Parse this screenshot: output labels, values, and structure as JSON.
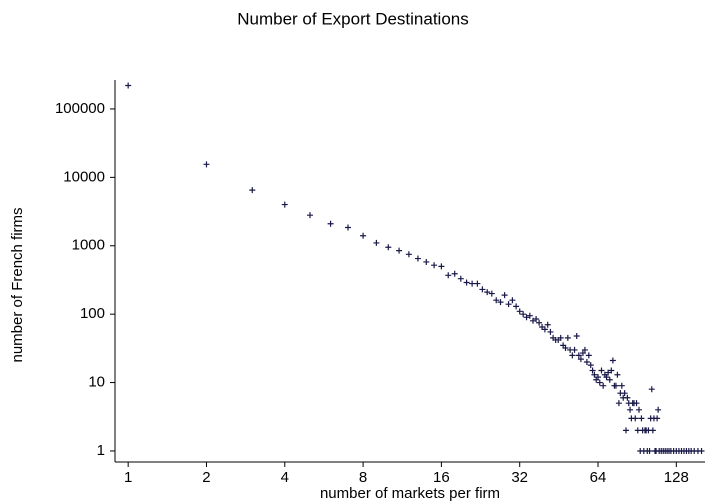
{
  "chart_data": {
    "type": "scatter",
    "title": "Number of Export Destinations",
    "x_label": "number of markets per firm",
    "y_label": "number of French firms",
    "x_scale": "log",
    "y_scale": "log",
    "grid": false,
    "color": "#1a1a4a",
    "xlim": [
      0.89,
      165
    ],
    "ylim": [
      0.69,
      265000
    ],
    "xticks": [
      1,
      2,
      4,
      8,
      16,
      32,
      64,
      128
    ],
    "yticks": [
      1,
      10,
      100,
      1000,
      10000,
      100000
    ],
    "x": [
      1,
      2,
      3,
      4,
      5,
      6,
      7,
      8,
      9,
      10,
      11,
      12,
      13,
      14,
      15,
      16,
      17,
      18,
      19,
      20,
      21,
      22,
      23,
      24,
      25,
      26,
      27,
      28,
      29,
      30,
      31,
      32,
      33,
      34,
      35,
      36,
      37,
      38,
      39,
      40,
      41,
      42,
      43,
      44,
      45,
      46,
      47,
      48,
      49,
      50,
      51,
      52,
      53,
      54,
      55,
      56,
      57,
      58,
      59,
      60,
      61,
      62,
      63,
      64,
      65,
      66,
      67,
      68,
      69,
      70,
      71,
      72,
      73,
      74,
      75,
      76,
      77,
      78,
      79,
      80,
      81,
      82,
      83,
      84,
      85,
      86,
      87,
      88,
      89,
      90,
      91,
      92,
      93,
      94,
      95,
      96,
      97,
      98,
      99,
      100,
      101,
      102,
      103,
      104,
      105,
      106,
      107,
      108,
      109,
      110,
      112,
      114,
      116,
      118,
      120,
      122,
      125,
      128,
      131,
      134,
      137,
      140,
      143,
      146,
      150,
      155,
      160
    ],
    "values": [
      220000,
      15500,
      6500,
      4000,
      2800,
      2100,
      1850,
      1400,
      1100,
      950,
      850,
      750,
      650,
      580,
      520,
      500,
      370,
      390,
      330,
      290,
      280,
      280,
      230,
      210,
      200,
      160,
      150,
      190,
      140,
      160,
      130,
      110,
      100,
      90,
      95,
      80,
      85,
      75,
      65,
      60,
      70,
      55,
      45,
      42,
      42,
      45,
      35,
      32,
      45,
      30,
      25,
      30,
      48,
      25,
      22,
      27,
      30,
      20,
      25,
      18,
      15,
      13,
      11,
      12,
      10,
      15,
      9,
      13,
      12,
      14,
      11,
      15,
      21,
      9,
      9,
      13,
      5,
      7,
      9,
      6,
      7,
      2,
      6,
      5,
      4,
      3,
      5,
      5,
      3,
      5,
      2,
      4,
      1,
      3,
      2,
      1,
      2,
      2,
      1,
      2,
      1,
      3,
      8,
      2,
      3,
      1,
      1,
      3,
      4,
      1,
      1,
      1,
      1,
      1,
      1,
      1,
      1,
      1,
      1,
      1,
      1,
      1,
      1,
      1,
      1,
      1,
      1
    ]
  }
}
